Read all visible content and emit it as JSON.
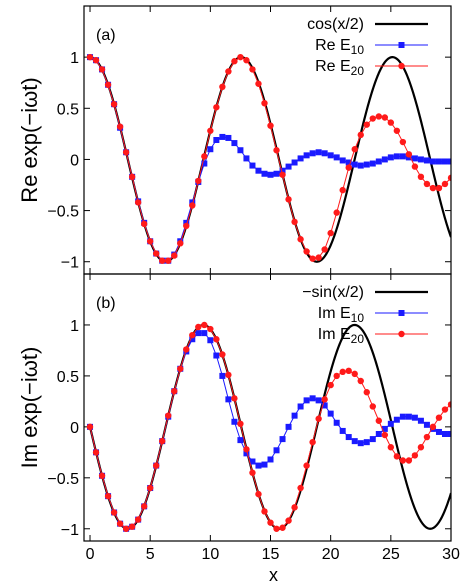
{
  "chart_data": [
    {
      "type": "line",
      "panel_label": "(a)",
      "ylabel": "Re exp(−iωt)",
      "xlabel": "",
      "xlim": [
        -0.5,
        30
      ],
      "ylim": [
        -1.12,
        1.5
      ],
      "xticks": [
        0,
        5,
        10,
        15,
        20,
        25,
        30
      ],
      "xtick_labels_shown": false,
      "yticks": [
        -1,
        -0.5,
        0,
        0.5,
        1
      ],
      "ytick_labels": [
        "−1",
        "−0.5",
        "0",
        "0.5",
        "1"
      ],
      "legend_position": "top-right",
      "series": [
        {
          "name": "cos(x/2)",
          "color": "#000000",
          "style": "line",
          "fn": "cos"
        },
        {
          "name": "Re E",
          "name_sub": "10",
          "color": "#1a1aff",
          "style": "square",
          "points": [
            [
              0,
              1
            ],
            [
              0.5,
              0.97
            ],
            [
              1,
              0.88
            ],
            [
              1.5,
              0.73
            ],
            [
              2,
              0.54
            ],
            [
              2.5,
              0.31
            ],
            [
              3,
              0.07
            ],
            [
              3.5,
              -0.17
            ],
            [
              4,
              -0.41
            ],
            [
              4.5,
              -0.62
            ],
            [
              5,
              -0.8
            ],
            [
              5.5,
              -0.92
            ],
            [
              6,
              -0.99
            ],
            [
              6.5,
              -0.99
            ],
            [
              7,
              -0.93
            ],
            [
              7.5,
              -0.8
            ],
            [
              8,
              -0.62
            ],
            [
              8.5,
              -0.42
            ],
            [
              9,
              -0.22
            ],
            [
              9.5,
              -0.04
            ],
            [
              10,
              0.1
            ],
            [
              10.5,
              0.19
            ],
            [
              11,
              0.22
            ],
            [
              11.5,
              0.21
            ],
            [
              12,
              0.16
            ],
            [
              12.5,
              0.09
            ],
            [
              13,
              0.01
            ],
            [
              13.5,
              -0.06
            ],
            [
              14,
              -0.11
            ],
            [
              14.5,
              -0.14
            ],
            [
              15,
              -0.15
            ],
            [
              15.5,
              -0.14
            ],
            [
              16,
              -0.11
            ],
            [
              16.5,
              -0.07
            ],
            [
              17,
              -0.03
            ],
            [
              17.5,
              0.01
            ],
            [
              18,
              0.04
            ],
            [
              18.5,
              0.06
            ],
            [
              19,
              0.07
            ],
            [
              19.5,
              0.06
            ],
            [
              20,
              0.04
            ],
            [
              20.5,
              0.02
            ],
            [
              21,
              -0.01
            ],
            [
              21.5,
              -0.03
            ],
            [
              22,
              -0.05
            ],
            [
              22.5,
              -0.06
            ],
            [
              23,
              -0.05
            ],
            [
              23.5,
              -0.04
            ],
            [
              24,
              -0.02
            ],
            [
              24.5,
              0
            ],
            [
              25,
              0.02
            ],
            [
              25.5,
              0.03
            ],
            [
              26,
              0.03
            ],
            [
              26.5,
              0.02
            ],
            [
              27,
              0.01
            ],
            [
              27.5,
              0
            ],
            [
              28,
              -0.01
            ],
            [
              28.5,
              -0.02
            ],
            [
              29,
              -0.02
            ],
            [
              29.5,
              -0.02
            ],
            [
              30,
              -0.02
            ]
          ]
        },
        {
          "name": "Re E",
          "name_sub": "20",
          "color": "#ff1a1a",
          "style": "circle",
          "points": [
            [
              0,
              1
            ],
            [
              0.5,
              0.97
            ],
            [
              1,
              0.88
            ],
            [
              1.5,
              0.73
            ],
            [
              2,
              0.54
            ],
            [
              2.5,
              0.32
            ],
            [
              3,
              0.07
            ],
            [
              3.5,
              -0.17
            ],
            [
              4,
              -0.42
            ],
            [
              4.5,
              -0.63
            ],
            [
              5,
              -0.8
            ],
            [
              5.5,
              -0.92
            ],
            [
              6,
              -0.99
            ],
            [
              6.5,
              -0.99
            ],
            [
              7,
              -0.94
            ],
            [
              7.5,
              -0.82
            ],
            [
              8,
              -0.65
            ],
            [
              8.5,
              -0.45
            ],
            [
              9,
              -0.21
            ],
            [
              9.5,
              0.03
            ],
            [
              10,
              0.28
            ],
            [
              10.5,
              0.51
            ],
            [
              11,
              0.71
            ],
            [
              11.5,
              0.86
            ],
            [
              12,
              0.96
            ],
            [
              12.5,
              1
            ],
            [
              13,
              0.97
            ],
            [
              13.5,
              0.88
            ],
            [
              14,
              0.74
            ],
            [
              14.5,
              0.55
            ],
            [
              15,
              0.33
            ],
            [
              15.5,
              0.09
            ],
            [
              16,
              -0.15
            ],
            [
              16.5,
              -0.39
            ],
            [
              17,
              -0.61
            ],
            [
              17.5,
              -0.78
            ],
            [
              18,
              -0.9
            ],
            [
              18.5,
              -0.97
            ],
            [
              19,
              -0.96
            ],
            [
              19.5,
              -0.88
            ],
            [
              20,
              -0.72
            ],
            [
              20.5,
              -0.52
            ],
            [
              21,
              -0.3
            ],
            [
              21.5,
              -0.08
            ],
            [
              22,
              0.1
            ],
            [
              22.5,
              0.24
            ],
            [
              23,
              0.34
            ],
            [
              23.5,
              0.4
            ],
            [
              24,
              0.42
            ],
            [
              24.5,
              0.41
            ],
            [
              25,
              0.36
            ],
            [
              25.5,
              0.28
            ],
            [
              26,
              0.17
            ],
            [
              26.5,
              0.05
            ],
            [
              27,
              -0.07
            ],
            [
              27.5,
              -0.17
            ],
            [
              28,
              -0.24
            ],
            [
              28.5,
              -0.28
            ],
            [
              29,
              -0.28
            ],
            [
              29.5,
              -0.24
            ],
            [
              30,
              -0.18
            ]
          ]
        }
      ]
    },
    {
      "type": "line",
      "panel_label": "(b)",
      "ylabel": "Im exp(−iωt)",
      "xlabel": "x",
      "xlim": [
        -0.5,
        30
      ],
      "ylim": [
        -1.12,
        1.5
      ],
      "xticks": [
        0,
        5,
        10,
        15,
        20,
        25,
        30
      ],
      "xtick_labels": [
        "0",
        "5",
        "10",
        "15",
        "20",
        "25",
        "30"
      ],
      "xtick_labels_shown": true,
      "yticks": [
        -1,
        -0.5,
        0,
        0.5,
        1
      ],
      "ytick_labels": [
        "−1",
        "−0.5",
        "0",
        "0.5",
        "1"
      ],
      "legend_position": "top-right",
      "series": [
        {
          "name": "−sin(x/2)",
          "color": "#000000",
          "style": "line",
          "fn": "negsin"
        },
        {
          "name": "Im E",
          "name_sub": "10",
          "color": "#1a1aff",
          "style": "square",
          "points": [
            [
              0,
              0
            ],
            [
              0.5,
              -0.25
            ],
            [
              1,
              -0.48
            ],
            [
              1.5,
              -0.68
            ],
            [
              2,
              -0.84
            ],
            [
              2.5,
              -0.95
            ],
            [
              3,
              -1
            ],
            [
              3.5,
              -0.98
            ],
            [
              4,
              -0.91
            ],
            [
              4.5,
              -0.78
            ],
            [
              5,
              -0.6
            ],
            [
              5.5,
              -0.38
            ],
            [
              6,
              -0.14
            ],
            [
              6.5,
              0.1
            ],
            [
              7,
              0.35
            ],
            [
              7.5,
              0.57
            ],
            [
              8,
              0.74
            ],
            [
              8.5,
              0.86
            ],
            [
              9,
              0.92
            ],
            [
              9.5,
              0.92
            ],
            [
              10,
              0.85
            ],
            [
              10.5,
              0.7
            ],
            [
              11,
              0.5
            ],
            [
              11.5,
              0.27
            ],
            [
              12,
              0.05
            ],
            [
              12.5,
              -0.13
            ],
            [
              13,
              -0.26
            ],
            [
              13.5,
              -0.34
            ],
            [
              14,
              -0.38
            ],
            [
              14.5,
              -0.37
            ],
            [
              15,
              -0.32
            ],
            [
              15.5,
              -0.23
            ],
            [
              16,
              -0.12
            ],
            [
              16.5,
              0
            ],
            [
              17,
              0.11
            ],
            [
              17.5,
              0.2
            ],
            [
              18,
              0.26
            ],
            [
              18.5,
              0.28
            ],
            [
              19,
              0.26
            ],
            [
              19.5,
              0.21
            ],
            [
              20,
              0.13
            ],
            [
              20.5,
              0.04
            ],
            [
              21,
              -0.04
            ],
            [
              21.5,
              -0.1
            ],
            [
              22,
              -0.14
            ],
            [
              22.5,
              -0.16
            ],
            [
              23,
              -0.15
            ],
            [
              23.5,
              -0.12
            ],
            [
              24,
              -0.07
            ],
            [
              24.5,
              -0.02
            ],
            [
              25,
              0.03
            ],
            [
              25.5,
              0.07
            ],
            [
              26,
              0.1
            ],
            [
              26.5,
              0.1
            ],
            [
              27,
              0.09
            ],
            [
              27.5,
              0.06
            ],
            [
              28,
              0.02
            ],
            [
              28.5,
              -0.02
            ],
            [
              29,
              -0.05
            ],
            [
              29.5,
              -0.07
            ],
            [
              30,
              -0.07
            ]
          ]
        },
        {
          "name": "Im E",
          "name_sub": "20",
          "color": "#ff1a1a",
          "style": "circle",
          "points": [
            [
              0,
              0
            ],
            [
              0.5,
              -0.25
            ],
            [
              1,
              -0.48
            ],
            [
              1.5,
              -0.68
            ],
            [
              2,
              -0.84
            ],
            [
              2.5,
              -0.95
            ],
            [
              3,
              -1
            ],
            [
              3.5,
              -0.98
            ],
            [
              4,
              -0.91
            ],
            [
              4.5,
              -0.78
            ],
            [
              5,
              -0.6
            ],
            [
              5.5,
              -0.38
            ],
            [
              6,
              -0.14
            ],
            [
              6.5,
              0.11
            ],
            [
              7,
              0.35
            ],
            [
              7.5,
              0.57
            ],
            [
              8,
              0.76
            ],
            [
              8.5,
              0.9
            ],
            [
              9,
              0.98
            ],
            [
              9.5,
              1
            ],
            [
              10,
              0.96
            ],
            [
              10.5,
              0.86
            ],
            [
              11,
              0.71
            ],
            [
              11.5,
              0.51
            ],
            [
              12,
              0.28
            ],
            [
              12.5,
              0.03
            ],
            [
              13,
              -0.22
            ],
            [
              13.5,
              -0.45
            ],
            [
              14,
              -0.66
            ],
            [
              14.5,
              -0.83
            ],
            [
              15,
              -0.94
            ],
            [
              15.5,
              -1
            ],
            [
              16,
              -0.99
            ],
            [
              16.5,
              -0.92
            ],
            [
              17,
              -0.79
            ],
            [
              17.5,
              -0.6
            ],
            [
              18,
              -0.38
            ],
            [
              18.5,
              -0.15
            ],
            [
              19,
              0.08
            ],
            [
              19.5,
              0.27
            ],
            [
              20,
              0.41
            ],
            [
              20.5,
              0.5
            ],
            [
              21,
              0.54
            ],
            [
              21.5,
              0.55
            ],
            [
              22,
              0.52
            ],
            [
              22.5,
              0.45
            ],
            [
              23,
              0.34
            ],
            [
              23.5,
              0.2
            ],
            [
              24,
              0.06
            ],
            [
              24.5,
              -0.08
            ],
            [
              25,
              -0.2
            ],
            [
              25.5,
              -0.29
            ],
            [
              26,
              -0.33
            ],
            [
              26.5,
              -0.33
            ],
            [
              27,
              -0.28
            ],
            [
              27.5,
              -0.2
            ],
            [
              28,
              -0.1
            ],
            [
              28.5,
              0
            ],
            [
              29,
              0.09
            ],
            [
              29.5,
              0.17
            ],
            [
              30,
              0.22
            ]
          ]
        }
      ]
    }
  ]
}
